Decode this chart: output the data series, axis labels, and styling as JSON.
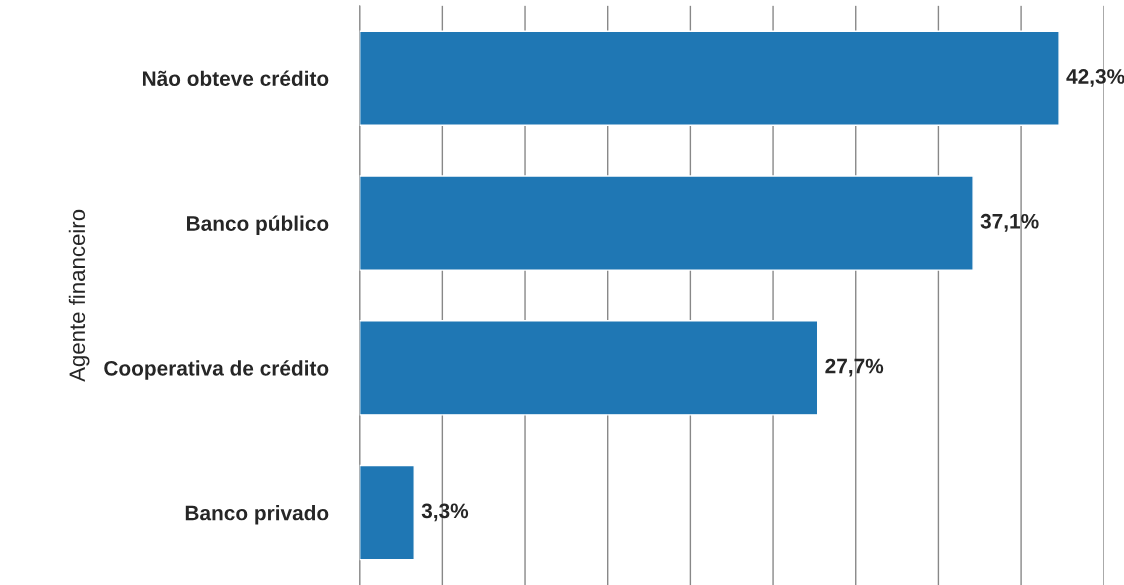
{
  "chart_data": {
    "type": "bar",
    "orientation": "horizontal",
    "ylabel": "Agente financeiro",
    "categories": [
      "Não obteve crédito",
      "Banco público",
      "Cooperativa de crédito",
      "Banco privado"
    ],
    "values": [
      42.3,
      37.1,
      27.7,
      3.3
    ],
    "value_labels": [
      "42,3%",
      "37,1%",
      "27,7%",
      "3,3%"
    ],
    "color": "#1f77b4",
    "xlim": [
      0,
      45
    ],
    "xticks": [
      {
        "value": 0,
        "label": null
      },
      {
        "value": 5,
        "label": null
      },
      {
        "value": 10,
        "label": null
      },
      {
        "value": 15,
        "label": null
      },
      {
        "value": 20,
        "label": null
      },
      {
        "value": 25,
        "label": null
      },
      {
        "value": 30,
        "label": null
      },
      {
        "value": 35,
        "label": null
      },
      {
        "value": 40,
        "label": null
      },
      {
        "value": 45,
        "label": null
      }
    ],
    "tick_labels": "y",
    "grid": "x",
    "legend": false
  }
}
